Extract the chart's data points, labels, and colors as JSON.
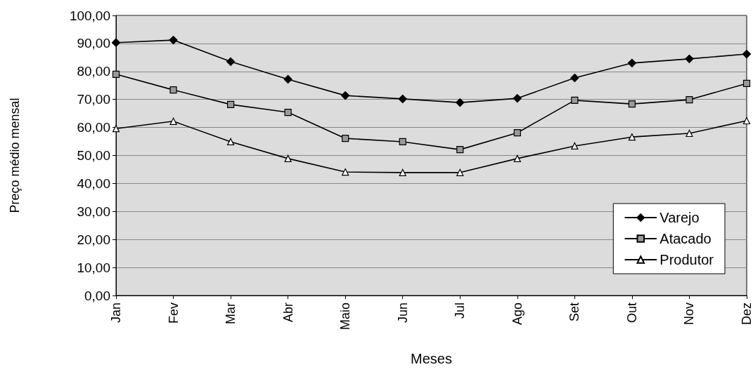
{
  "chart_data": {
    "type": "line",
    "xlabel": "Meses",
    "ylabel": "Preço médio mensal",
    "categories": [
      "Jan",
      "Fev",
      "Mar",
      "Abr",
      "Maio",
      "Jun",
      "Jul",
      "Ago",
      "Set",
      "Out",
      "Nov",
      "Dez"
    ],
    "series": [
      {
        "name": "Varejo",
        "color": "#000000",
        "marker": "diamond",
        "values": [
          90.3,
          91.2,
          83.5,
          77.2,
          71.4,
          70.2,
          68.9,
          70.4,
          77.7,
          83.0,
          84.5,
          86.2
        ]
      },
      {
        "name": "Atacado",
        "color": "#000000",
        "marker": "square",
        "values": [
          79.0,
          73.4,
          68.2,
          65.4,
          56.1,
          54.9,
          52.1,
          58.1,
          69.7,
          68.4,
          69.9,
          75.7
        ]
      },
      {
        "name": "Produtor",
        "color": "#000000",
        "marker": "triangle",
        "values": [
          59.6,
          62.2,
          54.9,
          48.9,
          44.1,
          43.9,
          43.9,
          48.9,
          53.4,
          56.6,
          57.9,
          62.4
        ]
      }
    ],
    "ylim": [
      0,
      100
    ],
    "yticks": [
      {
        "value": 0,
        "label": "0,00"
      },
      {
        "value": 10,
        "label": "10,00"
      },
      {
        "value": 20,
        "label": "20,00"
      },
      {
        "value": 30,
        "label": "30,00"
      },
      {
        "value": 40,
        "label": "40,00"
      },
      {
        "value": 50,
        "label": "50,00"
      },
      {
        "value": 60,
        "label": "60,00"
      },
      {
        "value": 70,
        "label": "70,00"
      },
      {
        "value": 80,
        "label": "80,00"
      },
      {
        "value": 90,
        "label": "90,00"
      },
      {
        "value": 100,
        "label": "100,00"
      }
    ],
    "grid": "y",
    "legend": "bottom right",
    "line_style": "solid"
  }
}
